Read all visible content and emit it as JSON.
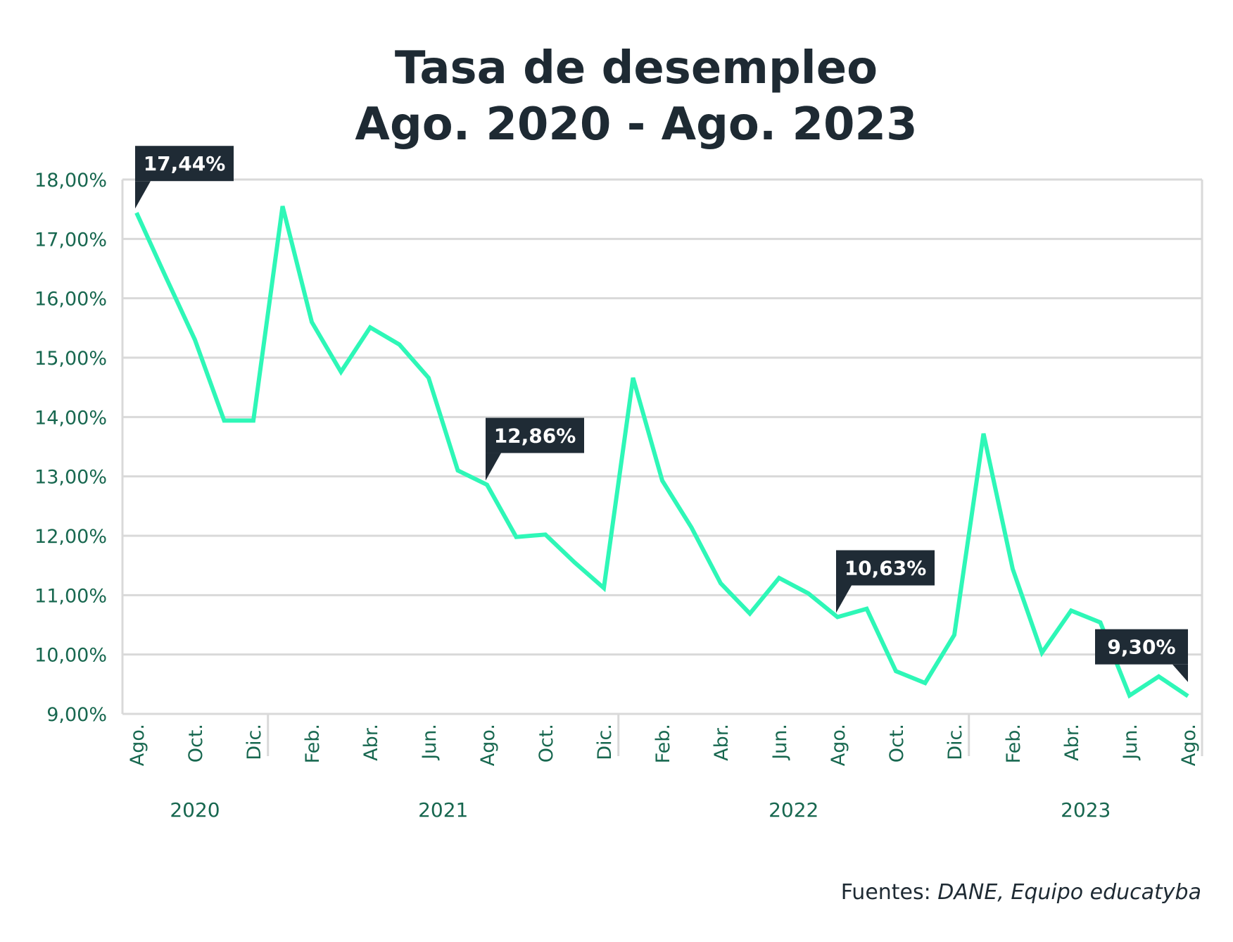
{
  "chart_data": {
    "type": "line",
    "title": [
      "Tasa de desempleo",
      "Ago. 2020 - Ago. 2023"
    ],
    "xlabel": "",
    "ylabel": "",
    "ylim": [
      9,
      18
    ],
    "yticks": [
      "9,00%",
      "10,00%",
      "11,00%",
      "12,00%",
      "13,00%",
      "14,00%",
      "15,00%",
      "16,00%",
      "17,00%",
      "18,00%"
    ],
    "grid": true,
    "x": [
      "2020-08",
      "2020-09",
      "2020-10",
      "2020-11",
      "2020-12",
      "2021-01",
      "2021-02",
      "2021-03",
      "2021-04",
      "2021-05",
      "2021-06",
      "2021-07",
      "2021-08",
      "2021-09",
      "2021-10",
      "2021-11",
      "2021-12",
      "2022-01",
      "2022-02",
      "2022-03",
      "2022-04",
      "2022-05",
      "2022-06",
      "2022-07",
      "2022-08",
      "2022-09",
      "2022-10",
      "2022-11",
      "2022-12",
      "2023-01",
      "2023-02",
      "2023-03",
      "2023-04",
      "2023-05",
      "2023-06",
      "2023-07",
      "2023-08"
    ],
    "values": [
      17.44,
      16.36,
      15.3,
      13.94,
      13.94,
      17.55,
      15.6,
      14.76,
      15.51,
      15.22,
      14.66,
      13.1,
      12.86,
      11.98,
      12.02,
      11.55,
      11.12,
      14.66,
      12.93,
      12.14,
      11.2,
      10.69,
      11.29,
      11.03,
      10.63,
      10.77,
      9.72,
      9.52,
      10.33,
      13.72,
      11.44,
      10.03,
      10.74,
      10.54,
      9.31,
      9.63,
      9.3
    ],
    "month_tick_labels": [
      {
        "index": 0,
        "label": "Ago."
      },
      {
        "index": 2,
        "label": "Oct."
      },
      {
        "index": 4,
        "label": "Dic."
      },
      {
        "index": 6,
        "label": "Feb."
      },
      {
        "index": 8,
        "label": "Abr."
      },
      {
        "index": 10,
        "label": "Jun."
      },
      {
        "index": 12,
        "label": "Ago."
      },
      {
        "index": 14,
        "label": "Oct."
      },
      {
        "index": 16,
        "label": "Dic."
      },
      {
        "index": 18,
        "label": "Feb."
      },
      {
        "index": 20,
        "label": "Abr."
      },
      {
        "index": 22,
        "label": "Jun."
      },
      {
        "index": 24,
        "label": "Ago."
      },
      {
        "index": 26,
        "label": "Oct."
      },
      {
        "index": 28,
        "label": "Dic."
      },
      {
        "index": 30,
        "label": "Feb."
      },
      {
        "index": 32,
        "label": "Abr."
      },
      {
        "index": 34,
        "label": "Jun."
      },
      {
        "index": 36,
        "label": "Ago."
      }
    ],
    "years": [
      "2020",
      "2021",
      "2022",
      "2023"
    ],
    "annotations": [
      {
        "index": 0,
        "label": "17,44%",
        "side": "left"
      },
      {
        "index": 12,
        "label": "12,86%",
        "side": "left"
      },
      {
        "index": 24,
        "label": "10,63%",
        "side": "left"
      },
      {
        "index": 36,
        "label": "9,30%",
        "side": "right"
      }
    ],
    "colors": {
      "line": "#2ef7b7",
      "text": "#17674f",
      "title": "#1e2a33",
      "callout": "#1f2b35",
      "grid": "#d9d9d9"
    }
  },
  "source": {
    "prefix": "Fuentes: ",
    "italic": "DANE, Equipo educatyba"
  }
}
